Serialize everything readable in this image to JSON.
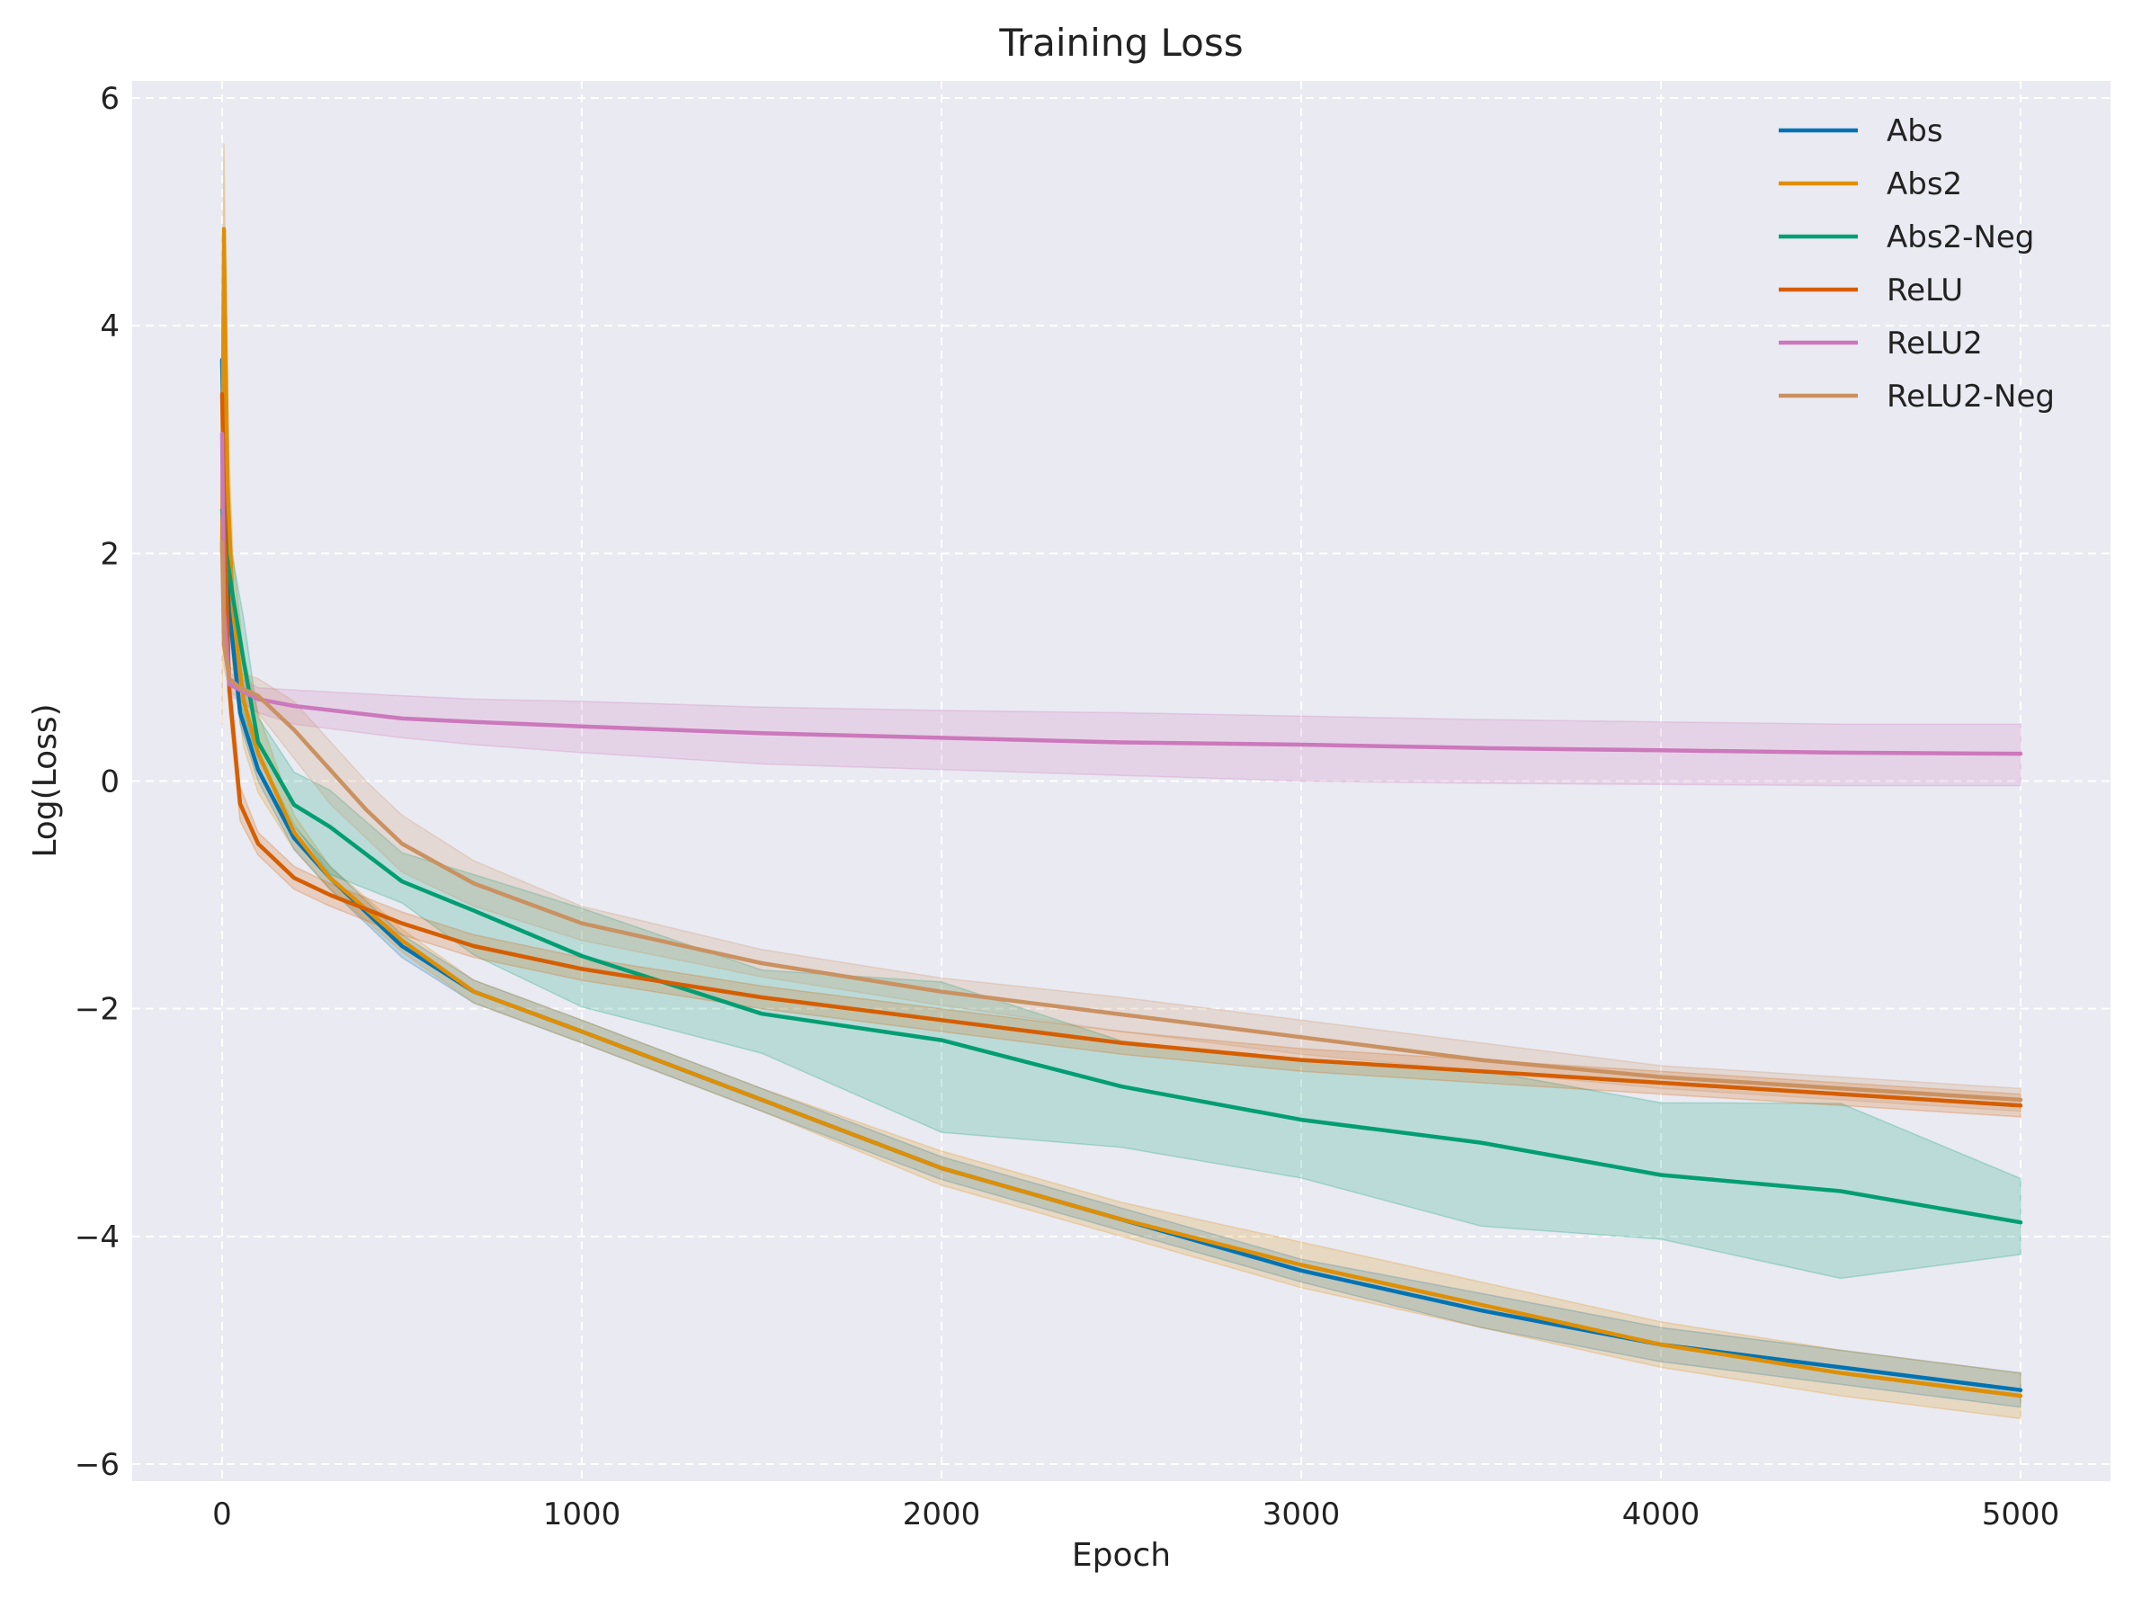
{
  "chart_data": {
    "type": "line",
    "title": "Training Loss",
    "xlabel": "Epoch",
    "ylabel": "Log(Loss)",
    "xlim": [
      -250,
      5250
    ],
    "ylim": [
      -6.15,
      6.15
    ],
    "xticks": [
      0,
      1000,
      2000,
      3000,
      4000,
      5000
    ],
    "xtick_labels": [
      "0",
      "1000",
      "2000",
      "3000",
      "4000",
      "5000"
    ],
    "yticks": [
      -6,
      -4,
      -2,
      0,
      2,
      4,
      6
    ],
    "ytick_labels": [
      "−6",
      "−4",
      "−2",
      "0",
      "2",
      "4",
      "6"
    ],
    "grid": true,
    "grid_style": "dashed",
    "legend_position": "top-right",
    "background_color": "#eaeaf2",
    "series": [
      {
        "name": "Abs",
        "color": "#0173b2",
        "x": [
          0,
          5,
          20,
          50,
          100,
          200,
          300,
          500,
          700,
          1000,
          1500,
          2000,
          2500,
          3000,
          3500,
          4000,
          4500,
          5000
        ],
        "y": [
          3.7,
          2.6,
          1.5,
          0.6,
          0.1,
          -0.5,
          -0.85,
          -1.45,
          -1.85,
          -2.2,
          -2.8,
          -3.4,
          -3.85,
          -4.3,
          -4.65,
          -4.95,
          -5.15,
          -5.35
        ],
        "lower": [
          3.3,
          2.3,
          1.3,
          0.5,
          0.0,
          -0.6,
          -0.95,
          -1.55,
          -1.95,
          -2.3,
          -2.9,
          -3.5,
          -3.95,
          -4.4,
          -4.8,
          -5.1,
          -5.3,
          -5.5
        ],
        "upper": [
          4.1,
          2.9,
          1.7,
          0.7,
          0.2,
          -0.4,
          -0.75,
          -1.35,
          -1.75,
          -2.1,
          -2.7,
          -3.3,
          -3.75,
          -4.2,
          -4.5,
          -4.8,
          -5.0,
          -5.2
        ]
      },
      {
        "name": "Abs2",
        "color": "#de8f05",
        "x": [
          0,
          5,
          15,
          30,
          60,
          100,
          200,
          300,
          500,
          700,
          1000,
          1500,
          2000,
          2500,
          3000,
          3500,
          4000,
          4500,
          5000
        ],
        "y": [
          2.0,
          4.85,
          2.6,
          1.5,
          0.7,
          0.25,
          -0.45,
          -0.85,
          -1.4,
          -1.85,
          -2.2,
          -2.8,
          -3.4,
          -3.85,
          -4.25,
          -4.6,
          -4.95,
          -5.2,
          -5.4
        ],
        "lower": [
          0.5,
          4.0,
          2.0,
          1.0,
          0.3,
          -0.1,
          -0.6,
          -0.95,
          -1.5,
          -1.95,
          -2.3,
          -2.9,
          -3.55,
          -4.0,
          -4.45,
          -4.8,
          -5.15,
          -5.4,
          -5.6
        ],
        "upper": [
          3.5,
          5.6,
          3.2,
          2.0,
          1.1,
          0.6,
          -0.3,
          -0.75,
          -1.3,
          -1.75,
          -2.1,
          -2.7,
          -3.25,
          -3.7,
          -4.05,
          -4.4,
          -4.75,
          -5.0,
          -5.2
        ]
      },
      {
        "name": "Abs2-Neg",
        "color": "#029e73",
        "x": [
          0,
          10,
          30,
          60,
          100,
          200,
          300,
          500,
          700,
          1000,
          1500,
          2000,
          2500,
          3000,
          3500,
          4000,
          4500,
          5000
        ],
        "y": [
          2.35,
          2.0,
          1.6,
          1.0,
          0.4,
          -0.2,
          -0.45,
          -0.85,
          -1.15,
          -1.55,
          -2.0,
          -2.35,
          -2.65,
          -2.95,
          -3.2,
          -3.45,
          -3.65,
          -3.8
        ],
        "lower": [
          2.1,
          1.7,
          1.2,
          0.6,
          0.1,
          -0.4,
          -0.7,
          -1.15,
          -1.5,
          -1.95,
          -2.5,
          -2.9,
          -3.3,
          -3.55,
          -3.85,
          -4.05,
          -4.25,
          -4.35
        ],
        "upper": [
          2.6,
          2.3,
          1.9,
          1.3,
          0.7,
          0.1,
          -0.2,
          -0.55,
          -0.85,
          -1.15,
          -1.55,
          -1.95,
          -2.2,
          -2.4,
          -2.6,
          -2.8,
          -2.95,
          -3.3
        ],
        "noise_amplitude": 0.05
      },
      {
        "name": "ReLU",
        "color": "#d55e00",
        "x": [
          0,
          5,
          20,
          50,
          100,
          200,
          300,
          500,
          700,
          1000,
          1500,
          2000,
          2500,
          3000,
          3500,
          4000,
          4500,
          5000
        ],
        "y": [
          3.4,
          2.5,
          0.8,
          -0.2,
          -0.55,
          -0.85,
          -1.0,
          -1.25,
          -1.45,
          -1.65,
          -1.9,
          -2.1,
          -2.3,
          -2.45,
          -2.55,
          -2.65,
          -2.75,
          -2.85
        ],
        "lower": [
          3.2,
          2.3,
          0.6,
          -0.35,
          -0.65,
          -0.95,
          -1.1,
          -1.35,
          -1.55,
          -1.75,
          -2.0,
          -2.2,
          -2.4,
          -2.55,
          -2.65,
          -2.75,
          -2.85,
          -2.95
        ],
        "upper": [
          3.6,
          2.7,
          1.0,
          -0.05,
          -0.45,
          -0.75,
          -0.9,
          -1.15,
          -1.35,
          -1.55,
          -1.8,
          -2.0,
          -2.2,
          -2.35,
          -2.45,
          -2.55,
          -2.65,
          -2.75
        ]
      },
      {
        "name": "ReLU2",
        "color": "#cc78bc",
        "x": [
          0,
          5,
          20,
          50,
          100,
          200,
          500,
          700,
          1000,
          1500,
          2000,
          2500,
          3000,
          3500,
          4000,
          4500,
          5000
        ],
        "y": [
          3.05,
          1.5,
          0.85,
          0.8,
          0.72,
          0.66,
          0.55,
          0.52,
          0.48,
          0.42,
          0.38,
          0.34,
          0.32,
          0.29,
          0.27,
          0.25,
          0.24
        ],
        "lower": [
          2.85,
          1.3,
          0.75,
          0.7,
          0.6,
          0.5,
          0.38,
          0.32,
          0.25,
          0.15,
          0.1,
          0.05,
          0.0,
          -0.02,
          -0.03,
          -0.04,
          -0.04
        ],
        "upper": [
          3.25,
          1.7,
          0.95,
          0.9,
          0.82,
          0.8,
          0.75,
          0.72,
          0.7,
          0.65,
          0.62,
          0.6,
          0.57,
          0.54,
          0.52,
          0.5,
          0.5
        ]
      },
      {
        "name": "ReLU2-Neg",
        "color": "#ca9161",
        "x": [
          0,
          5,
          20,
          50,
          100,
          200,
          300,
          400,
          500,
          700,
          1000,
          1500,
          2000,
          2500,
          3000,
          3500,
          4000,
          4500,
          5000
        ],
        "y": [
          2.1,
          1.2,
          0.9,
          0.82,
          0.75,
          0.45,
          0.1,
          -0.25,
          -0.55,
          -0.9,
          -1.25,
          -1.6,
          -1.85,
          -2.05,
          -2.25,
          -2.45,
          -2.6,
          -2.7,
          -2.8
        ],
        "lower": [
          1.9,
          1.0,
          0.8,
          0.7,
          0.6,
          0.2,
          -0.2,
          -0.5,
          -0.8,
          -1.1,
          -1.4,
          -1.72,
          -1.97,
          -2.2,
          -2.4,
          -2.55,
          -2.7,
          -2.8,
          -2.9
        ],
        "upper": [
          2.3,
          1.4,
          1.0,
          0.95,
          0.9,
          0.7,
          0.35,
          0.0,
          -0.3,
          -0.7,
          -1.1,
          -1.48,
          -1.73,
          -1.9,
          -2.1,
          -2.3,
          -2.5,
          -2.6,
          -2.7
        ]
      }
    ]
  }
}
